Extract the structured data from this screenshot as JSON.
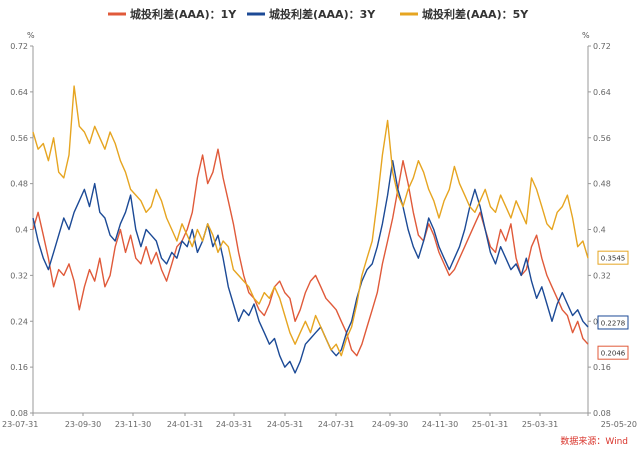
{
  "chart_data": {
    "type": "line",
    "title": "",
    "units": {
      "left": "%",
      "right": "%"
    },
    "y_ticks": [
      "0.08",
      "0.16",
      "0.24",
      "0.32",
      "0.4",
      "0.48",
      "0.56",
      "0.64",
      "0.72"
    ],
    "ylim": [
      0.08,
      0.72
    ],
    "x_ticks": [
      "23-07-31",
      "23-09-30",
      "23-11-30",
      "24-01-31",
      "24-03-31",
      "24-05-31",
      "24-07-31",
      "24-09-30",
      "24-11-30",
      "25-01-31",
      "25-03-31",
      "25-05-20"
    ],
    "grid": false,
    "legend_position": "top-center",
    "source": "数据来源：Wind",
    "series": [
      {
        "name": "城投利差(AAA)：1Y",
        "color": "#e05a3a",
        "end_label": "0.2046",
        "values": [
          0.4,
          0.43,
          0.39,
          0.35,
          0.3,
          0.33,
          0.32,
          0.34,
          0.31,
          0.26,
          0.3,
          0.33,
          0.31,
          0.35,
          0.3,
          0.32,
          0.37,
          0.4,
          0.36,
          0.39,
          0.35,
          0.34,
          0.37,
          0.34,
          0.36,
          0.33,
          0.31,
          0.34,
          0.37,
          0.38,
          0.4,
          0.43,
          0.49,
          0.53,
          0.48,
          0.5,
          0.54,
          0.49,
          0.45,
          0.41,
          0.36,
          0.32,
          0.29,
          0.28,
          0.26,
          0.25,
          0.27,
          0.3,
          0.31,
          0.29,
          0.28,
          0.24,
          0.26,
          0.29,
          0.31,
          0.32,
          0.3,
          0.28,
          0.27,
          0.26,
          0.24,
          0.22,
          0.19,
          0.18,
          0.2,
          0.23,
          0.26,
          0.29,
          0.34,
          0.38,
          0.42,
          0.47,
          0.52,
          0.48,
          0.43,
          0.39,
          0.38,
          0.41,
          0.39,
          0.36,
          0.34,
          0.32,
          0.33,
          0.35,
          0.37,
          0.39,
          0.41,
          0.43,
          0.4,
          0.37,
          0.36,
          0.4,
          0.38,
          0.41,
          0.35,
          0.32,
          0.33,
          0.37,
          0.39,
          0.35,
          0.32,
          0.3,
          0.28,
          0.26,
          0.25,
          0.22,
          0.24,
          0.21,
          0.2
        ]
      },
      {
        "name": "城投利差(AAA)：3Y",
        "color": "#1c4a96",
        "end_label": "0.2278",
        "values": [
          0.42,
          0.38,
          0.35,
          0.33,
          0.36,
          0.39,
          0.42,
          0.4,
          0.43,
          0.45,
          0.47,
          0.44,
          0.48,
          0.43,
          0.42,
          0.39,
          0.38,
          0.41,
          0.43,
          0.46,
          0.4,
          0.37,
          0.4,
          0.39,
          0.38,
          0.35,
          0.34,
          0.36,
          0.35,
          0.38,
          0.37,
          0.4,
          0.36,
          0.38,
          0.41,
          0.37,
          0.39,
          0.35,
          0.3,
          0.27,
          0.24,
          0.26,
          0.25,
          0.27,
          0.24,
          0.22,
          0.2,
          0.21,
          0.18,
          0.16,
          0.17,
          0.15,
          0.17,
          0.2,
          0.21,
          0.22,
          0.23,
          0.21,
          0.19,
          0.18,
          0.19,
          0.22,
          0.24,
          0.28,
          0.31,
          0.33,
          0.34,
          0.37,
          0.41,
          0.46,
          0.52,
          0.47,
          0.44,
          0.4,
          0.37,
          0.35,
          0.38,
          0.42,
          0.4,
          0.37,
          0.35,
          0.33,
          0.35,
          0.37,
          0.4,
          0.44,
          0.47,
          0.44,
          0.4,
          0.36,
          0.34,
          0.37,
          0.35,
          0.33,
          0.34,
          0.32,
          0.35,
          0.31,
          0.28,
          0.3,
          0.27,
          0.24,
          0.27,
          0.29,
          0.27,
          0.25,
          0.26,
          0.24,
          0.23
        ]
      },
      {
        "name": "城投利差(AAA)：5Y",
        "color": "#e6a521",
        "end_label": "0.3545",
        "values": [
          0.57,
          0.54,
          0.55,
          0.52,
          0.56,
          0.5,
          0.49,
          0.53,
          0.65,
          0.58,
          0.57,
          0.55,
          0.58,
          0.56,
          0.54,
          0.57,
          0.55,
          0.52,
          0.5,
          0.47,
          0.46,
          0.45,
          0.43,
          0.44,
          0.47,
          0.45,
          0.42,
          0.4,
          0.38,
          0.41,
          0.39,
          0.37,
          0.4,
          0.38,
          0.41,
          0.39,
          0.36,
          0.38,
          0.37,
          0.33,
          0.32,
          0.31,
          0.3,
          0.28,
          0.27,
          0.29,
          0.28,
          0.3,
          0.28,
          0.25,
          0.22,
          0.2,
          0.22,
          0.24,
          0.22,
          0.25,
          0.23,
          0.21,
          0.19,
          0.2,
          0.18,
          0.21,
          0.23,
          0.27,
          0.32,
          0.35,
          0.38,
          0.45,
          0.53,
          0.59,
          0.5,
          0.46,
          0.44,
          0.47,
          0.49,
          0.52,
          0.5,
          0.47,
          0.45,
          0.42,
          0.45,
          0.47,
          0.51,
          0.48,
          0.46,
          0.44,
          0.43,
          0.45,
          0.47,
          0.44,
          0.43,
          0.46,
          0.44,
          0.42,
          0.45,
          0.43,
          0.41,
          0.49,
          0.47,
          0.44,
          0.41,
          0.4,
          0.43,
          0.44,
          0.46,
          0.42,
          0.37,
          0.38,
          0.35
        ]
      }
    ]
  }
}
